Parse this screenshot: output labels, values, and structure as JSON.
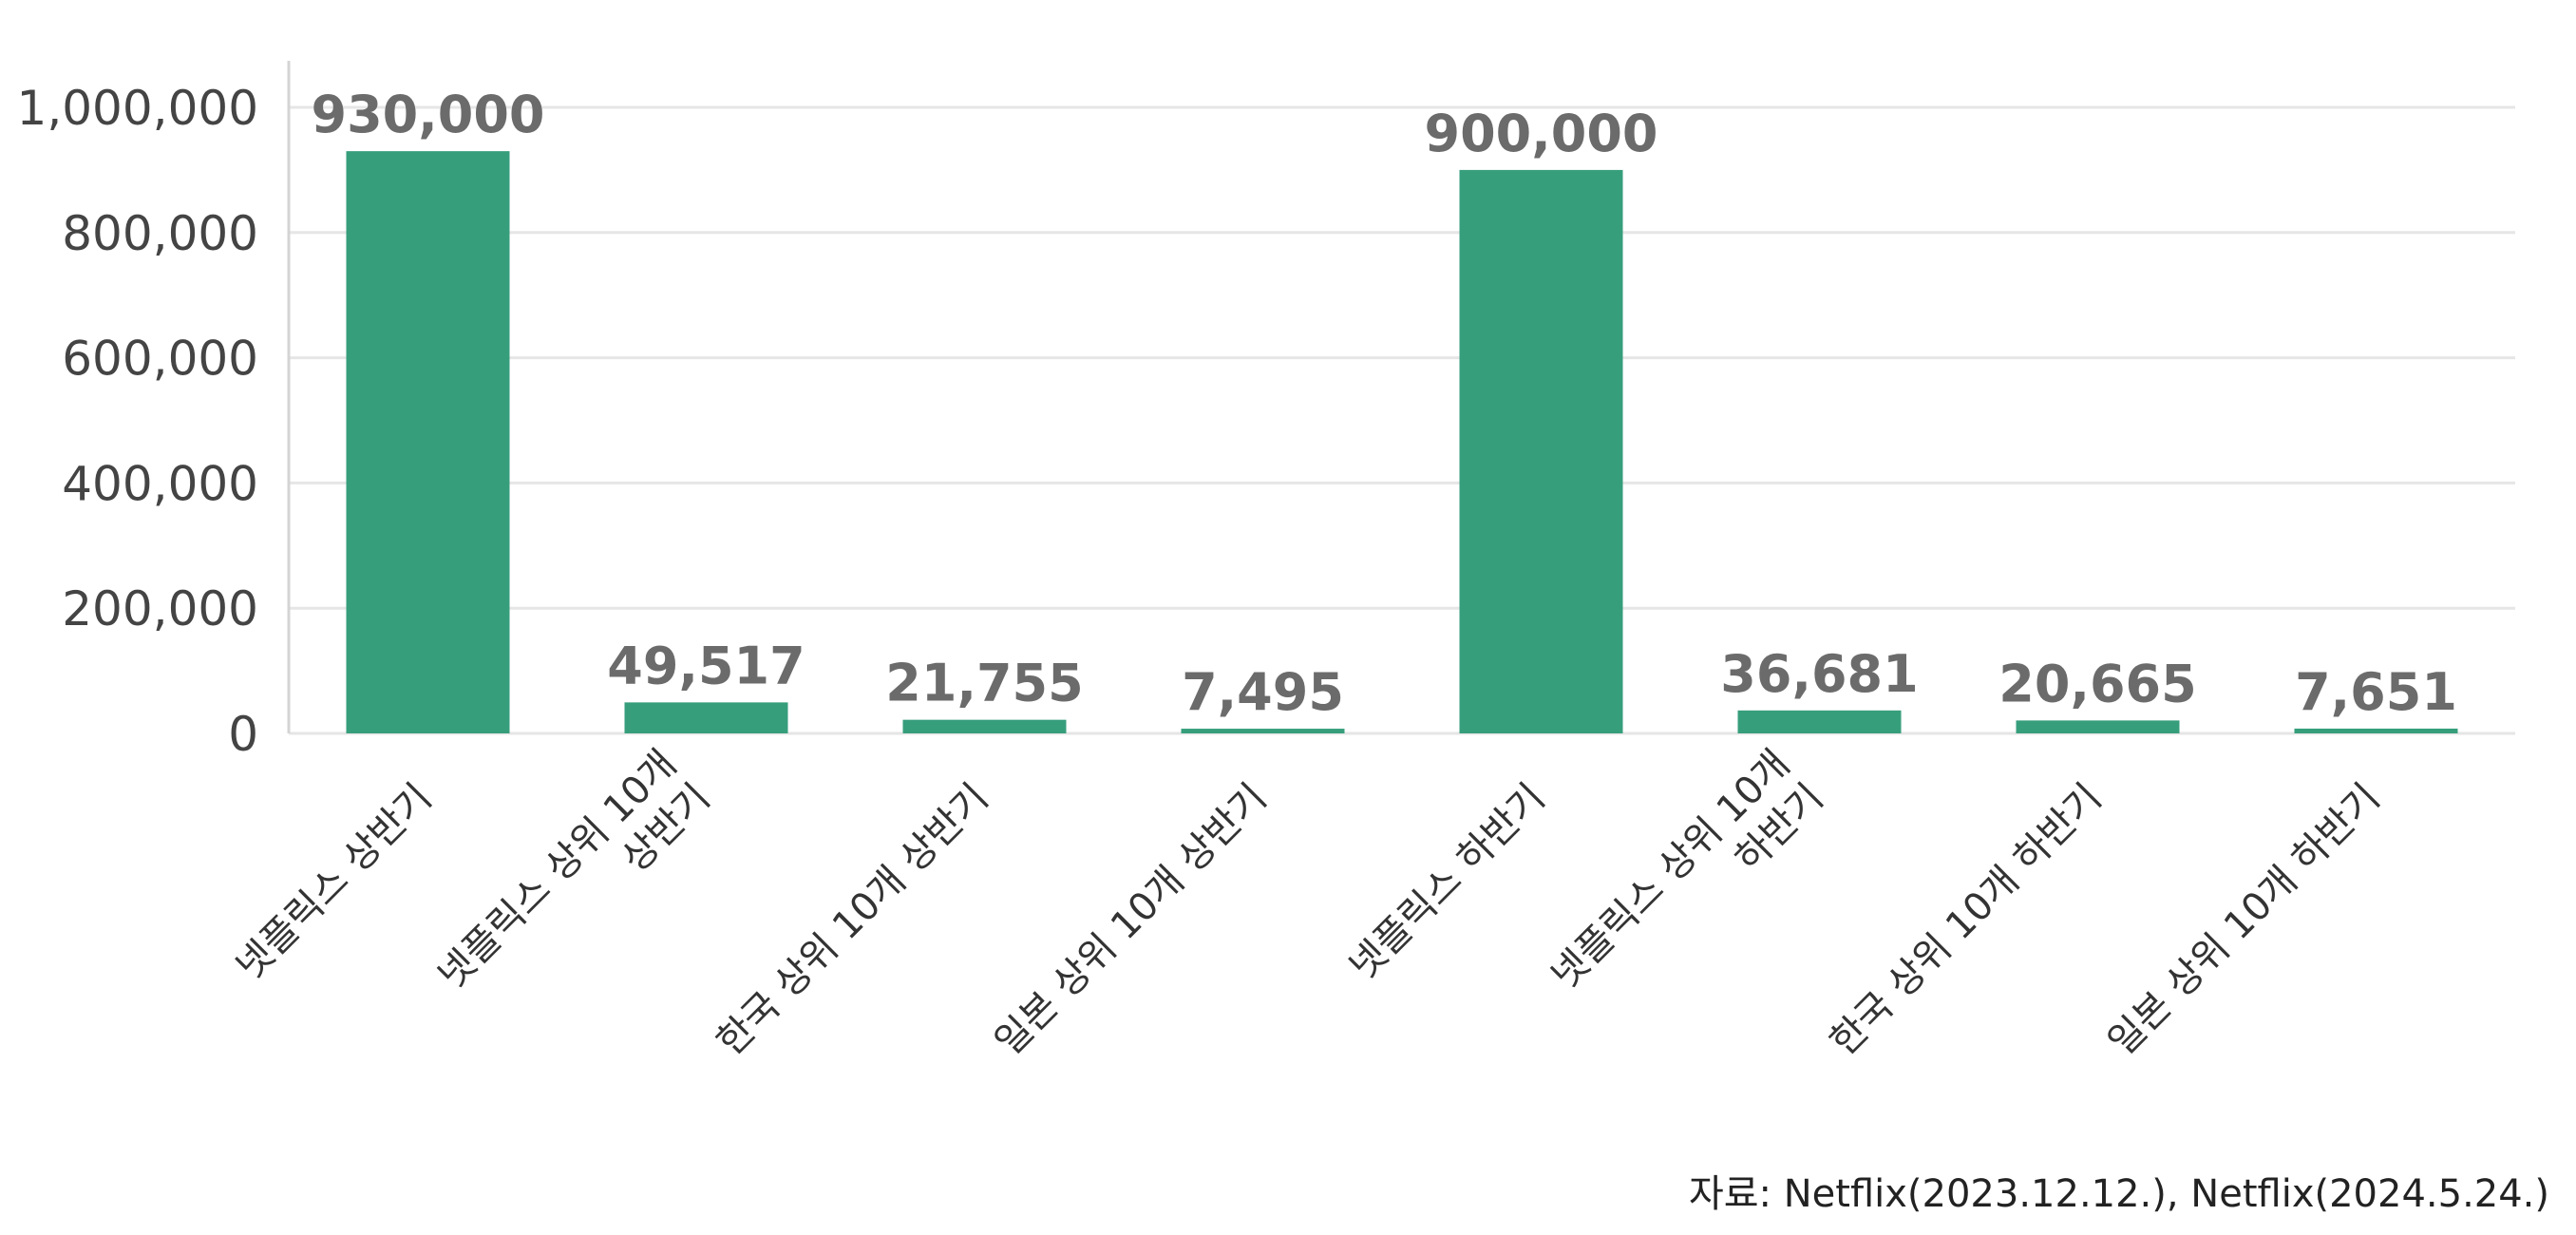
{
  "chart_data": {
    "type": "bar",
    "categories": [
      [
        "넷플릭스 상반기"
      ],
      [
        "넷플릭스 상위 10개",
        "상반기"
      ],
      [
        "한국 상위 10개 상반기"
      ],
      [
        "일본 상위 10개 상반기"
      ],
      [
        "넷플릭스 하반기"
      ],
      [
        "넷플릭스 상위 10개",
        "하반기"
      ],
      [
        "한국 상위 10개 하반기"
      ],
      [
        "일본 상위 10개 하반기"
      ]
    ],
    "values": [
      930000,
      49517,
      21755,
      7495,
      900000,
      36681,
      20665,
      7651
    ],
    "data_labels": [
      "930,000",
      "49,517",
      "21,755",
      "7,495",
      "900,000",
      "36,681",
      "20,665",
      "7,651"
    ],
    "ylim": [
      0,
      1090000
    ],
    "yticks": [
      0,
      200000,
      400000,
      600000,
      800000,
      1000000
    ],
    "ytick_labels": [
      "0",
      "200,000",
      "400,000",
      "600,000",
      "800,000",
      "1,000,000"
    ],
    "grid": true,
    "bar_color": "#379e7c",
    "label_color": "#6b6b6b",
    "title": "",
    "xlabel": "",
    "ylabel": ""
  },
  "source_note": "자료: Netflix(2023.12.12.), Netflix(2024.5.24.)"
}
